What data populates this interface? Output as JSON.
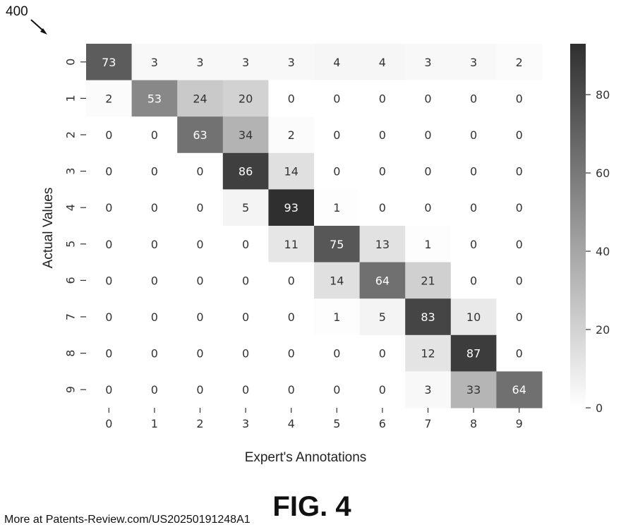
{
  "reference_numeral": "400",
  "figure_label": "FIG. 4",
  "watermark": "More at Patents-Review.com/US20250191248A1",
  "chart_data": {
    "type": "heatmap",
    "title": "",
    "xlabel": "Expert's Annotations",
    "ylabel": "Actual Values",
    "x_categories": [
      "0",
      "1",
      "2",
      "3",
      "4",
      "5",
      "6",
      "7",
      "8",
      "9"
    ],
    "y_categories": [
      "0",
      "1",
      "2",
      "3",
      "4",
      "5",
      "6",
      "7",
      "8",
      "9"
    ],
    "values": [
      [
        73,
        3,
        3,
        3,
        3,
        4,
        4,
        3,
        3,
        2
      ],
      [
        2,
        53,
        24,
        20,
        0,
        0,
        0,
        0,
        0,
        0
      ],
      [
        0,
        0,
        63,
        34,
        2,
        0,
        0,
        0,
        0,
        0
      ],
      [
        0,
        0,
        0,
        86,
        14,
        0,
        0,
        0,
        0,
        0
      ],
      [
        0,
        0,
        0,
        5,
        93,
        1,
        0,
        0,
        0,
        0
      ],
      [
        0,
        0,
        0,
        0,
        11,
        75,
        13,
        1,
        0,
        0
      ],
      [
        0,
        0,
        0,
        0,
        0,
        14,
        64,
        21,
        0,
        0
      ],
      [
        0,
        0,
        0,
        0,
        0,
        1,
        5,
        83,
        10,
        0
      ],
      [
        0,
        0,
        0,
        0,
        0,
        0,
        0,
        12,
        87,
        0
      ],
      [
        0,
        0,
        0,
        0,
        0,
        0,
        0,
        3,
        33,
        64
      ]
    ],
    "colorbar": {
      "range": [
        0,
        93
      ],
      "ticks": [
        0,
        20,
        40,
        60,
        80
      ],
      "low_color": "#ffffff",
      "high_color": "#2f2f2f"
    },
    "legend": "right"
  }
}
